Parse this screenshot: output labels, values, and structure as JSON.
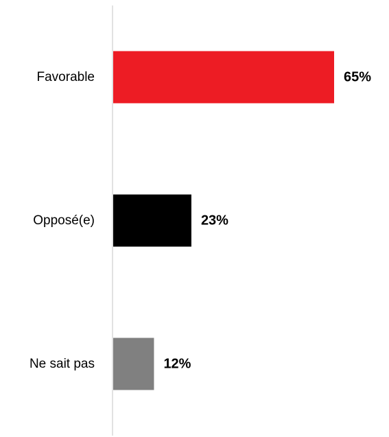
{
  "chart_data": {
    "type": "bar",
    "orientation": "horizontal",
    "title": "",
    "xlabel": "",
    "ylabel": "",
    "categories": [
      "Favorable",
      "Opposé(e)",
      "Ne sait pas"
    ],
    "values": [
      65,
      23,
      12
    ],
    "value_labels": [
      "65%",
      "23%",
      "12%"
    ],
    "unit": "%",
    "colors": [
      "#ed1c24",
      "#000000",
      "#808080"
    ],
    "axis_color": "#d9d9d9",
    "xlim": [
      0,
      65
    ],
    "grid": false,
    "legend": "none"
  }
}
